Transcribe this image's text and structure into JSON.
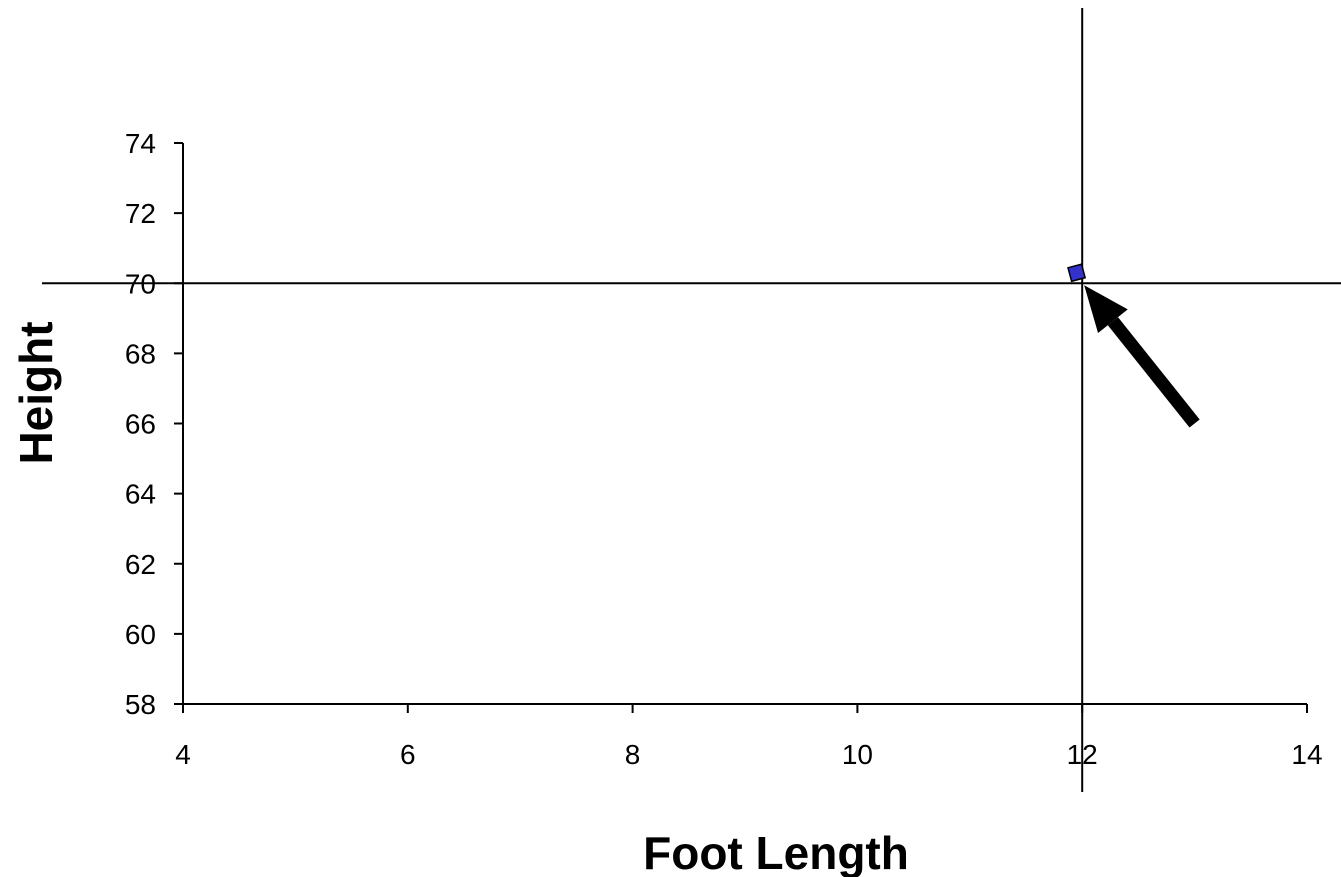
{
  "chart_data": {
    "type": "scatter",
    "title": "",
    "xlabel": "Foot Length",
    "ylabel": "Height",
    "xlim": [
      4,
      14
    ],
    "ylim": [
      58,
      74
    ],
    "xticks": [
      4,
      6,
      8,
      10,
      12,
      14
    ],
    "yticks": [
      58,
      60,
      62,
      64,
      66,
      68,
      70,
      72,
      74
    ],
    "grid": false,
    "legend": "none",
    "series": [
      {
        "points": [
          {
            "x": 11.95,
            "y": 70.3
          }
        ],
        "marker": "square",
        "color": "#3333cc"
      }
    ],
    "reference_lines": [
      {
        "orientation": "vertical",
        "value": 12
      },
      {
        "orientation": "horizontal",
        "value": 70
      }
    ],
    "annotation": {
      "type": "arrow",
      "color": "#000000",
      "from": {
        "x": 13,
        "y": 66
      },
      "to": {
        "x": 12,
        "y": 70
      }
    }
  }
}
